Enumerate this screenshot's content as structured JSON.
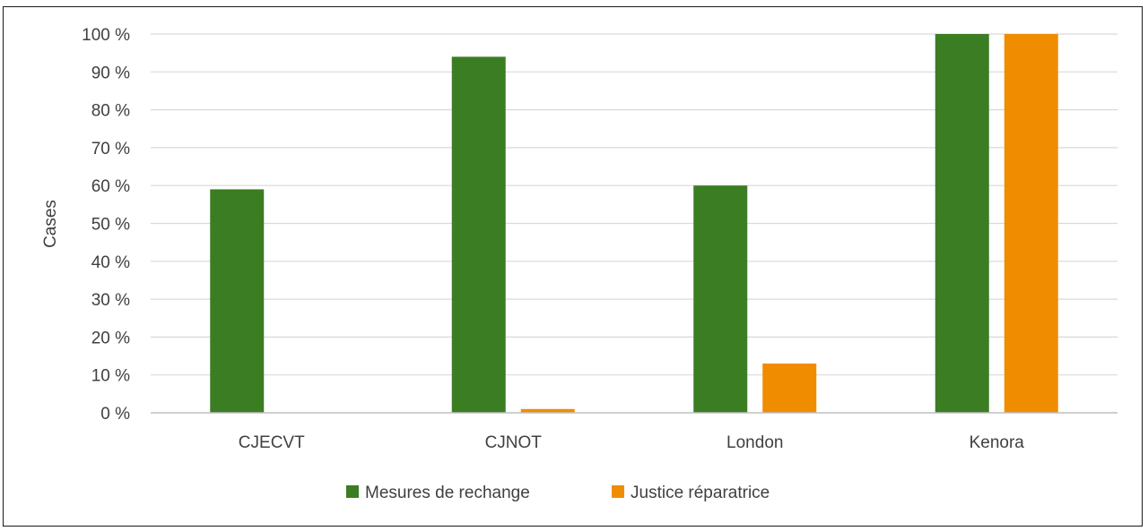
{
  "chart_data": {
    "type": "bar",
    "categories": [
      "CJECVT",
      "CJNOT",
      "London",
      "Kenora"
    ],
    "series": [
      {
        "name": "Mesures de rechange",
        "color": "#3B7D23",
        "values": [
          59,
          94,
          60,
          100
        ]
      },
      {
        "name": "Justice réparatrice",
        "color": "#F08C00",
        "values": [
          0,
          1,
          13,
          100
        ]
      }
    ],
    "title": "",
    "xlabel": "",
    "ylabel": "Cases",
    "ylim": [
      0,
      100
    ],
    "yticks": [
      "0 %",
      "10 %",
      "20 %",
      "30 %",
      "40 %",
      "50 %",
      "60 %",
      "70 %",
      "80 %",
      "90 %",
      "100 %"
    ],
    "grid": true,
    "legend_position": "bottom"
  }
}
